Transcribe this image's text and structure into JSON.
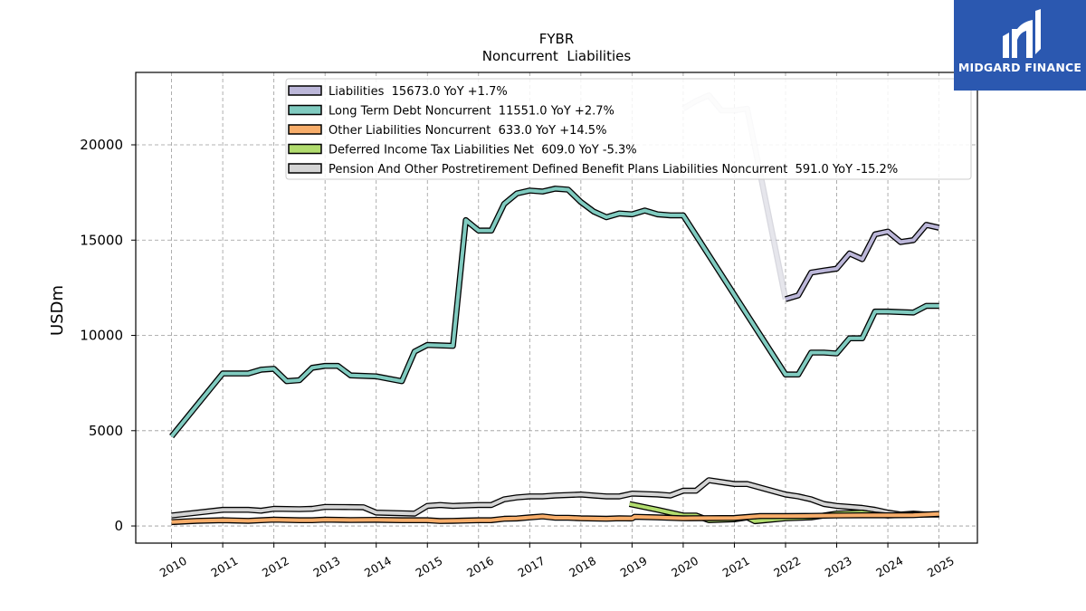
{
  "chart_data": {
    "type": "line",
    "title": "FYBR",
    "subtitle": "Noncurrent  Liabilities",
    "xlabel": "",
    "ylabel": "USDm",
    "xlim": [
      2009.3,
      2025.75
    ],
    "ylim": [
      -900,
      23800
    ],
    "yticks": [
      0,
      5000,
      10000,
      15000,
      20000
    ],
    "xticks": [
      "2010",
      "2011",
      "2012",
      "2013",
      "2014",
      "2015",
      "2016",
      "2017",
      "2018",
      "2019",
      "2020",
      "2021",
      "2022",
      "2023",
      "2024",
      "2025"
    ],
    "grid": true,
    "legend_position": "top",
    "series": [
      {
        "name": "Liabilities",
        "legend": "Liabilities  15673.0 YoY +1.7%",
        "color": "#bcb7d9",
        "faded_color": "#e6e6ec",
        "points": [
          [
            2020.0,
            21900,
            "f"
          ],
          [
            2020.25,
            22300,
            "f"
          ],
          [
            2020.5,
            22600,
            "f"
          ],
          [
            2020.75,
            21800,
            "f"
          ],
          [
            2021.0,
            21800,
            "f"
          ],
          [
            2021.25,
            21900,
            "f"
          ],
          [
            2022.0,
            11900
          ],
          [
            2022.25,
            12100
          ],
          [
            2022.5,
            13300
          ],
          [
            2022.75,
            13400
          ],
          [
            2023.0,
            13500
          ],
          [
            2023.25,
            14300
          ],
          [
            2023.5,
            14000
          ],
          [
            2023.75,
            15300
          ],
          [
            2024.0,
            15450
          ],
          [
            2024.25,
            14900
          ],
          [
            2024.5,
            15000
          ],
          [
            2024.75,
            15800
          ],
          [
            2025.0,
            15650
          ]
        ]
      },
      {
        "name": "Long Term Debt Noncurrent",
        "legend": "Long Term Debt Noncurrent  11551.0 YoY +2.7%",
        "color": "#80cbc0",
        "points": [
          [
            2010.0,
            4700
          ],
          [
            2011.0,
            8000
          ],
          [
            2011.5,
            8000
          ],
          [
            2011.75,
            8200
          ],
          [
            2012.0,
            8250
          ],
          [
            2012.25,
            7600
          ],
          [
            2012.5,
            7650
          ],
          [
            2012.75,
            8300
          ],
          [
            2013.0,
            8400
          ],
          [
            2013.25,
            8400
          ],
          [
            2013.5,
            7900
          ],
          [
            2014.0,
            7850
          ],
          [
            2014.5,
            7600
          ],
          [
            2014.75,
            9150
          ],
          [
            2015.0,
            9500
          ],
          [
            2015.5,
            9450
          ],
          [
            2015.75,
            16050
          ],
          [
            2016.0,
            15500
          ],
          [
            2016.25,
            15500
          ],
          [
            2016.5,
            16900
          ],
          [
            2016.75,
            17450
          ],
          [
            2017.0,
            17600
          ],
          [
            2017.25,
            17550
          ],
          [
            2017.5,
            17700
          ],
          [
            2017.75,
            17650
          ],
          [
            2018.0,
            17000
          ],
          [
            2018.25,
            16500
          ],
          [
            2018.5,
            16200
          ],
          [
            2018.75,
            16400
          ],
          [
            2019.0,
            16350
          ],
          [
            2019.25,
            16550
          ],
          [
            2019.5,
            16350
          ],
          [
            2019.75,
            16300
          ],
          [
            2020.0,
            16300
          ],
          [
            2022.0,
            7950
          ],
          [
            2022.25,
            7950
          ],
          [
            2022.5,
            9100
          ],
          [
            2022.75,
            9100
          ],
          [
            2023.0,
            9050
          ],
          [
            2023.25,
            9850
          ],
          [
            2023.5,
            9850
          ],
          [
            2023.75,
            11250
          ],
          [
            2024.0,
            11250
          ],
          [
            2024.5,
            11200
          ],
          [
            2024.75,
            11550
          ],
          [
            2025.0,
            11550
          ]
        ]
      },
      {
        "name": "Other Liabilities Noncurrent",
        "legend": "Other Liabilities Noncurrent  633.0 YoY +14.5%",
        "color": "#f7ad6a",
        "points": [
          [
            2010.0,
            200
          ],
          [
            2010.5,
            270
          ],
          [
            2011.0,
            300
          ],
          [
            2011.5,
            270
          ],
          [
            2011.75,
            300
          ],
          [
            2012.0,
            330
          ],
          [
            2012.5,
            300
          ],
          [
            2012.75,
            300
          ],
          [
            2013.0,
            330
          ],
          [
            2013.5,
            310
          ],
          [
            2014.0,
            320
          ],
          [
            2014.5,
            300
          ],
          [
            2014.75,
            300
          ],
          [
            2015.0,
            300
          ],
          [
            2015.25,
            260
          ],
          [
            2015.5,
            270
          ],
          [
            2016.0,
            300
          ],
          [
            2016.25,
            300
          ],
          [
            2016.5,
            380
          ],
          [
            2016.75,
            390
          ],
          [
            2017.0,
            450
          ],
          [
            2017.25,
            500
          ],
          [
            2017.5,
            430
          ],
          [
            2017.75,
            430
          ],
          [
            2018.0,
            400
          ],
          [
            2018.5,
            380
          ],
          [
            2018.75,
            400
          ],
          [
            2019.0,
            390
          ],
          [
            2019.05,
            480
          ],
          [
            2019.5,
            450
          ],
          [
            2020.0,
            400
          ],
          [
            2020.5,
            410
          ],
          [
            2021.0,
            420
          ],
          [
            2021.5,
            520
          ],
          [
            2022.0,
            520
          ],
          [
            2022.5,
            530
          ],
          [
            2023.0,
            550
          ],
          [
            2023.5,
            560
          ],
          [
            2024.0,
            560
          ],
          [
            2024.5,
            570
          ],
          [
            2025.0,
            630
          ]
        ]
      },
      {
        "name": "Deferred Income Tax Liabilities Net",
        "legend": "Deferred Income Tax Liabilities Net  609.0 YoY -5.3%",
        "color": "#b1dc6e",
        "points": [
          [
            2018.95,
            1150
          ],
          [
            2019.5,
            850
          ],
          [
            2020.0,
            550
          ],
          [
            2020.25,
            550
          ],
          [
            2020.5,
            300
          ],
          [
            2021.0,
            350
          ],
          [
            2021.25,
            450
          ],
          [
            2021.4,
            250
          ],
          [
            2022.0,
            400
          ],
          [
            2022.5,
            450
          ],
          [
            2023.0,
            650
          ],
          [
            2023.5,
            700
          ],
          [
            2023.75,
            600
          ],
          [
            2024.0,
            550
          ],
          [
            2024.5,
            600
          ],
          [
            2025.0,
            610
          ]
        ]
      },
      {
        "name": "Pension And Other Postretirement Defined Benefit Plans Liabilities Noncurrent",
        "legend": "Pension And Other Postretirement Defined Benefit Plans Liabilities Noncurrent  591.0 YoY -15.2%",
        "color": "#d4d4d4",
        "points": [
          [
            2010.0,
            550
          ],
          [
            2011.0,
            850
          ],
          [
            2011.5,
            850
          ],
          [
            2011.75,
            800
          ],
          [
            2012.0,
            900
          ],
          [
            2012.5,
            880
          ],
          [
            2012.75,
            900
          ],
          [
            2013.0,
            1000
          ],
          [
            2013.5,
            990
          ],
          [
            2013.75,
            980
          ],
          [
            2014.0,
            700
          ],
          [
            2014.75,
            650
          ],
          [
            2015.0,
            1050
          ],
          [
            2015.25,
            1100
          ],
          [
            2015.5,
            1050
          ],
          [
            2016.0,
            1100
          ],
          [
            2016.25,
            1100
          ],
          [
            2016.5,
            1400
          ],
          [
            2016.75,
            1500
          ],
          [
            2017.0,
            1550
          ],
          [
            2017.25,
            1550
          ],
          [
            2017.5,
            1600
          ],
          [
            2018.0,
            1650
          ],
          [
            2018.25,
            1600
          ],
          [
            2018.5,
            1550
          ],
          [
            2018.75,
            1550
          ],
          [
            2019.0,
            1700
          ],
          [
            2019.5,
            1650
          ],
          [
            2019.75,
            1600
          ],
          [
            2020.0,
            1850
          ],
          [
            2020.25,
            1850
          ],
          [
            2020.5,
            2400
          ],
          [
            2021.0,
            2200
          ],
          [
            2021.25,
            2200
          ],
          [
            2022.0,
            1650
          ],
          [
            2022.25,
            1550
          ],
          [
            2022.5,
            1400
          ],
          [
            2022.75,
            1150
          ],
          [
            2023.0,
            1050
          ],
          [
            2023.5,
            950
          ],
          [
            2023.75,
            850
          ],
          [
            2024.0,
            700
          ],
          [
            2024.25,
            600
          ],
          [
            2024.5,
            650
          ],
          [
            2024.75,
            600
          ],
          [
            2025.0,
            600
          ]
        ]
      }
    ]
  },
  "logo": {
    "text": "MIDGARD FINANCE",
    "background": "#2b58b0",
    "text_color": "#ffffff"
  }
}
